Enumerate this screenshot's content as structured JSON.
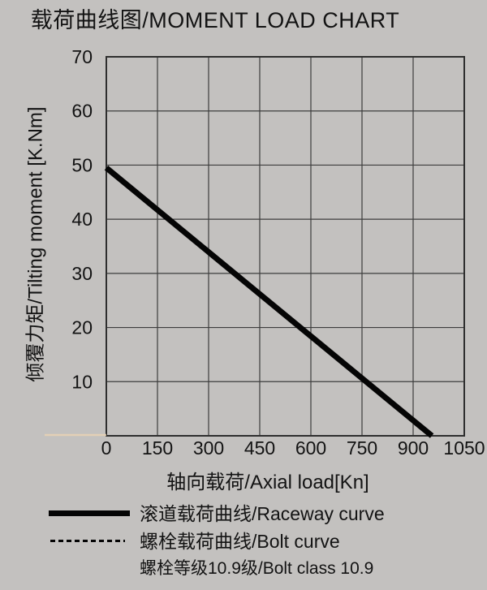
{
  "title": "载荷曲线图/MOMENT LOAD CHART",
  "chart_data": {
    "type": "line",
    "title": "载荷曲线图/MOMENT LOAD CHART",
    "xlabel": "轴向载荷/Axial load[Kn]",
    "ylabel": "倾覆力矩/Tilting moment [K.Nm]",
    "xlim": [
      0,
      1050
    ],
    "ylim": [
      0,
      70
    ],
    "xticks": [
      "0",
      "150",
      "300",
      "450",
      "600",
      "750",
      "900",
      "1050"
    ],
    "xtick_values": [
      0,
      150,
      300,
      450,
      600,
      750,
      900,
      1050
    ],
    "yticks": [
      "10",
      "20",
      "30",
      "40",
      "50",
      "60",
      "70"
    ],
    "ytick_values": [
      10,
      20,
      30,
      40,
      50,
      60,
      70
    ],
    "grid": true,
    "legend_position": "bottom",
    "series": [
      {
        "name": "滚道载荷曲线/Raceway curve",
        "style": "solid",
        "points": [
          [
            0,
            49.5
          ],
          [
            955,
            0
          ]
        ]
      },
      {
        "name": "螺栓载荷曲线/Bolt curve",
        "style": "dashed",
        "points": []
      }
    ]
  },
  "legend": {
    "raceway_label": "滚道载荷曲线/Raceway curve",
    "bolt_label": "螺栓载荷曲线/Bolt curve",
    "bolt_class_note": "螺栓等级10.9级/Bolt class 10.9"
  },
  "colors": {
    "background": "#c3c1bf",
    "grid": "#3d3d3d",
    "plot_border": "#2e2e2e",
    "curve": "#050505",
    "text": "#131313",
    "scan_artifact": "#e9d2b4"
  }
}
